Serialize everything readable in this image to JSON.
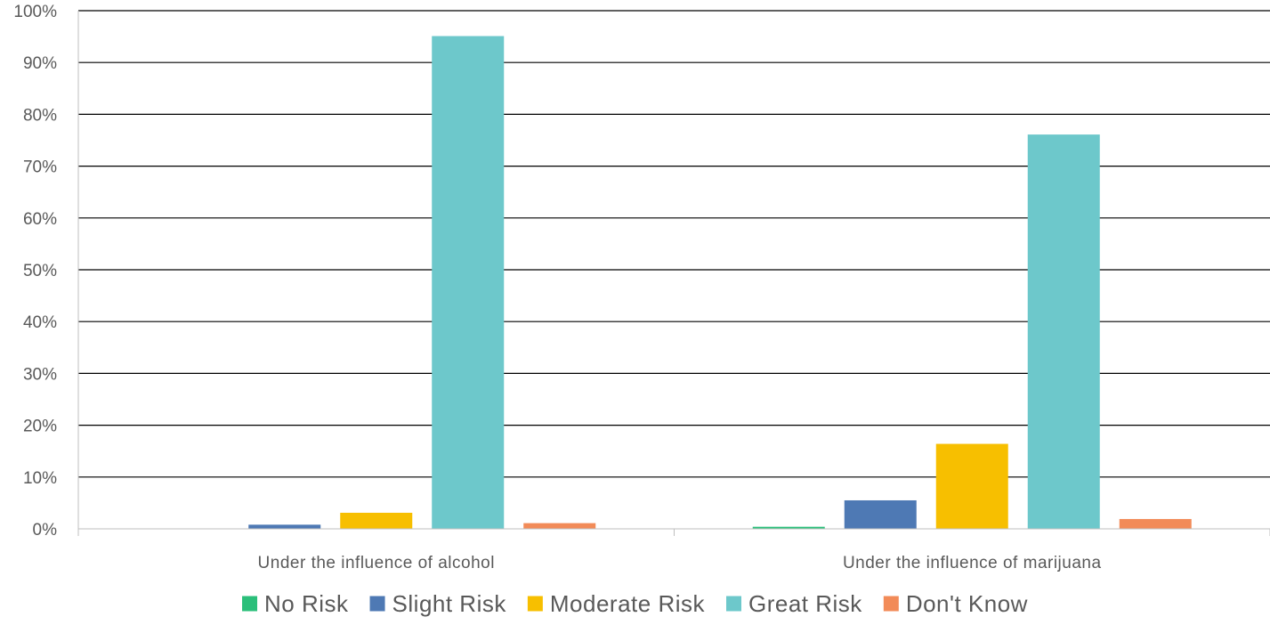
{
  "chart_data": {
    "type": "bar",
    "categories": [
      "Under the influence of alcohol",
      "Under the influence of marijuana"
    ],
    "series": [
      {
        "name": "No Risk",
        "color": "#2bbf7a",
        "values": [
          0,
          0.4
        ]
      },
      {
        "name": "Slight Risk",
        "color": "#4e79b4",
        "values": [
          0.8,
          5.5
        ]
      },
      {
        "name": "Moderate Risk",
        "color": "#f7bf00",
        "values": [
          3.1,
          16.4
        ]
      },
      {
        "name": "Great Risk",
        "color": "#6dc8cb",
        "values": [
          95.1,
          76.1
        ]
      },
      {
        "name": "Don't Know",
        "color": "#f28b58",
        "values": [
          1.1,
          1.9
        ]
      }
    ],
    "yticks": [
      "0%",
      "10%",
      "20%",
      "30%",
      "40%",
      "50%",
      "60%",
      "70%",
      "80%",
      "90%",
      "100%"
    ],
    "ylim": [
      0,
      100
    ],
    "title": "",
    "xlabel": "",
    "ylabel": "",
    "grid": true,
    "legend_position": "bottom"
  }
}
